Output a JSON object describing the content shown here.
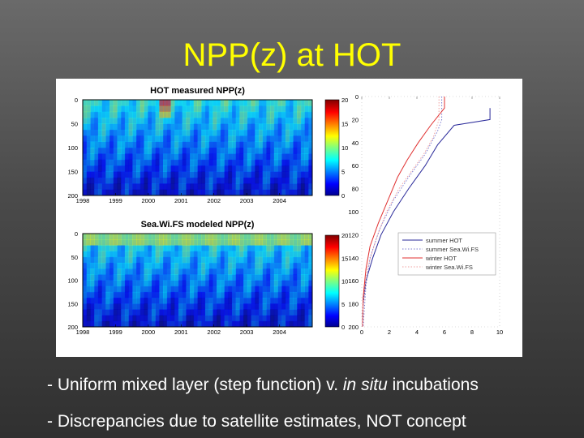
{
  "slide": {
    "title": "NPP(z) at HOT",
    "bullets": [
      {
        "prefix": "- Uniform mixed layer (step function) v. ",
        "italic": "in situ",
        "suffix": " incubations"
      },
      {
        "prefix": "- Discrepancies due to satellite estimates, NOT concept",
        "italic": "",
        "suffix": ""
      }
    ]
  },
  "colors": {
    "background": "#4d4d4d",
    "title": "#ffff00",
    "bullet_text": "#ffffff",
    "summer_hot": "#2a2a9a",
    "summer_seawifs": "#7a7ad0",
    "winter_hot": "#e03030",
    "winter_seawifs": "#f0a0a0"
  },
  "chart_data": [
    {
      "type": "heatmap",
      "title": "HOT measured NPP(z)",
      "xlabel": "",
      "ylabel": "",
      "x_ticks": [
        "1998",
        "1999",
        "2000",
        "2001",
        "2002",
        "2003",
        "2004"
      ],
      "xlim": [
        1998,
        2005
      ],
      "y_ticks": [
        0,
        50,
        100,
        150,
        200
      ],
      "ylim": [
        0,
        200
      ],
      "colorbar": {
        "ticks": [
          0,
          5,
          10,
          15,
          20
        ],
        "range": [
          0,
          20
        ]
      }
    },
    {
      "type": "heatmap",
      "title": "Sea.Wi.FS modeled NPP(z)",
      "xlabel": "",
      "ylabel": "",
      "x_ticks": [
        "1998",
        "1999",
        "2000",
        "2001",
        "2002",
        "2003",
        "2004"
      ],
      "xlim": [
        1998,
        2005
      ],
      "y_ticks": [
        0,
        50,
        100,
        150,
        200
      ],
      "ylim": [
        0,
        200
      ],
      "colorbar": {
        "ticks": [
          0,
          5,
          10,
          15,
          20
        ],
        "range": [
          0,
          20
        ]
      }
    },
    {
      "type": "line",
      "title": "",
      "xlabel": "",
      "ylabel": "",
      "x_ticks": [
        0,
        2,
        4,
        6,
        8,
        10
      ],
      "xlim": [
        0,
        10
      ],
      "y_ticks": [
        0,
        20,
        40,
        60,
        80,
        100,
        120,
        140,
        160,
        180,
        200
      ],
      "ylim": [
        0,
        200
      ],
      "y_inverted": true,
      "legend_position": "right-middle",
      "series": [
        {
          "name": "summer HOT",
          "style": "solid",
          "color": "#2a2a9a",
          "points": [
            [
              9.3,
              10
            ],
            [
              9.3,
              20
            ],
            [
              6.7,
              25
            ],
            [
              5.5,
              42
            ],
            [
              4.6,
              60
            ],
            [
              3.4,
              80
            ],
            [
              2.3,
              100
            ],
            [
              1.4,
              120
            ],
            [
              0.8,
              140
            ],
            [
              0.3,
              160
            ],
            [
              0.1,
              180
            ],
            [
              0.05,
              200
            ]
          ]
        },
        {
          "name": "summer Sea.Wi.FS",
          "style": "dotted",
          "color": "#7a7ad0",
          "points": [
            [
              5.8,
              0
            ],
            [
              5.8,
              20
            ],
            [
              5.5,
              30
            ],
            [
              4.6,
              50
            ],
            [
              3.4,
              70
            ],
            [
              2.3,
              90
            ],
            [
              1.3,
              115
            ],
            [
              0.6,
              140
            ],
            [
              0.3,
              165
            ],
            [
              0.1,
              200
            ]
          ]
        },
        {
          "name": "winter HOT",
          "style": "solid",
          "color": "#e03030",
          "points": [
            [
              6.0,
              0
            ],
            [
              6.0,
              10
            ],
            [
              5.0,
              25
            ],
            [
              4.1,
              40
            ],
            [
              3.3,
              55
            ],
            [
              2.6,
              70
            ],
            [
              1.9,
              90
            ],
            [
              1.2,
              110
            ],
            [
              0.6,
              130
            ],
            [
              0.3,
              150
            ],
            [
              0.1,
              175
            ],
            [
              0.05,
              200
            ]
          ]
        },
        {
          "name": "winter Sea.Wi.FS",
          "style": "dotted",
          "color": "#f0a0a0",
          "points": [
            [
              5.6,
              0
            ],
            [
              5.6,
              20
            ],
            [
              5.2,
              35
            ],
            [
              4.5,
              50
            ],
            [
              3.6,
              65
            ],
            [
              2.7,
              80
            ],
            [
              1.8,
              100
            ],
            [
              1.0,
              125
            ],
            [
              0.4,
              150
            ],
            [
              0.1,
              180
            ],
            [
              0.05,
              200
            ]
          ]
        }
      ]
    }
  ]
}
